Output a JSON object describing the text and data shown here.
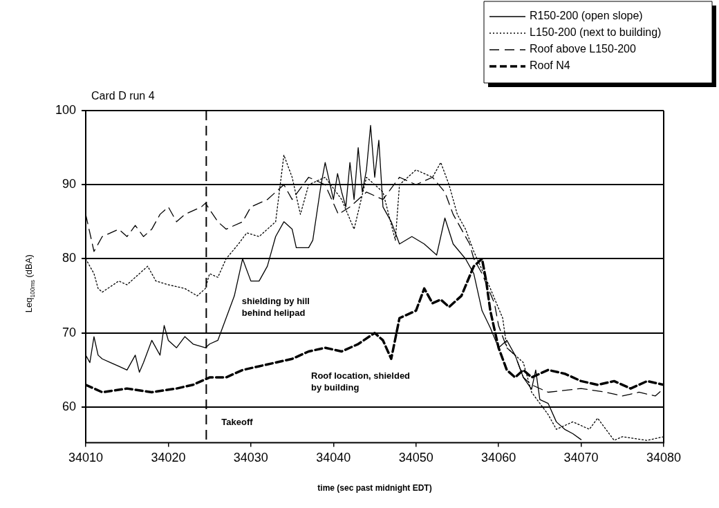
{
  "chart_data": {
    "type": "line",
    "title": "Card D run 4",
    "xlabel": "time (sec past midnight EDT)",
    "ylabel": "Leq$_{100ms}$ (dBA)",
    "xlim": [
      34010,
      34080
    ],
    "xticks": [
      34010,
      34020,
      34030,
      34040,
      34050,
      34060,
      34070,
      34080
    ],
    "ylim": [
      55.2,
      100
    ],
    "yticks": [
      60,
      70,
      80,
      90,
      100
    ],
    "grid": "y",
    "legend": "top right",
    "marker": "none",
    "ref_lines": [
      {
        "axis": "x",
        "value": 34024.6,
        "label": "Takeoff",
        "line_style": "dashed",
        "color": "#000000"
      }
    ],
    "annotations": [
      "shielding by hill\nbehind helipad",
      "Roof location, shielded\nby building"
    ],
    "series": [
      {
        "name": "R150-200 (open slope)",
        "color": "#000000",
        "line_style": "solid",
        "x": [
          34010,
          34010.5,
          34011,
          34011.5,
          34012,
          34013,
          34014,
          34015,
          34016,
          34016.5,
          34017,
          34018,
          34019,
          34019.5,
          34020,
          34021,
          34022,
          34023,
          34024.5,
          34025,
          34026,
          34027,
          34028,
          34029,
          34030,
          34031,
          34032,
          34033,
          34034,
          34035,
          34035.5,
          34037,
          34037.5,
          34038.5,
          34039,
          34040,
          34040.5,
          34041,
          34041.5,
          34042,
          34042.5,
          34043,
          34043.5,
          34044,
          34044.5,
          34045,
          34045.5,
          34046,
          34047,
          34048,
          34049.5,
          34051,
          34052.5,
          34053.5,
          34054.5,
          34056,
          34057,
          34058,
          34059,
          34060,
          34061,
          34062,
          34063,
          34064,
          34064.5,
          34065,
          34066,
          34067,
          34068,
          34069,
          34070
        ],
        "values": [
          67,
          66,
          69.5,
          67,
          66.5,
          66,
          65.5,
          65,
          67,
          64.7,
          66,
          69,
          67,
          71,
          69,
          68,
          69.5,
          68.5,
          68,
          68.5,
          69,
          72,
          75,
          80,
          77,
          77,
          79,
          83,
          85,
          84,
          81.5,
          81.5,
          82.5,
          90,
          93,
          88,
          91.5,
          89,
          87,
          93,
          88,
          95,
          89,
          92,
          98,
          91,
          96,
          87,
          85,
          82,
          83,
          82,
          80.5,
          85.5,
          82,
          80,
          78,
          73,
          70.7,
          68,
          69,
          67,
          64,
          62.4,
          65,
          61,
          60.5,
          58,
          57,
          56.4,
          55.6
        ]
      },
      {
        "name": "L150-200 (next to building)",
        "color": "#000000",
        "line_style": "dotted",
        "x": [
          34010,
          34011,
          34011.5,
          34012,
          34014,
          34015,
          34016,
          34017.5,
          34018.5,
          34020,
          34022,
          34023.5,
          34024.5,
          34025,
          34026,
          34027,
          34028.5,
          34029.5,
          34031,
          34032,
          34033,
          34034,
          34035,
          34036,
          34037,
          34039,
          34041,
          34042.5,
          34044,
          34046,
          34047.5,
          34048,
          34050,
          34052,
          34053,
          34054,
          34055,
          34056,
          34057,
          34059,
          34060.5,
          34061,
          34063,
          34064,
          34066,
          34067,
          34069,
          34071,
          34072,
          34073,
          34074,
          34075,
          34078,
          34080
        ],
        "values": [
          80,
          78,
          76,
          75.5,
          77,
          76.5,
          77.5,
          79,
          77,
          76.5,
          76,
          75,
          76,
          78,
          77.5,
          80,
          82,
          83.5,
          83,
          84,
          85,
          94,
          91,
          86,
          90,
          91,
          88,
          84,
          91,
          89,
          82.5,
          90,
          92,
          91,
          93,
          90,
          86,
          84,
          81,
          76,
          72,
          68,
          66,
          62,
          59,
          57,
          58,
          57,
          58.5,
          57,
          55.5,
          56,
          55.5,
          56
        ]
      },
      {
        "name": "Roof above L150-200",
        "color": "#000000",
        "line_style": "dashed",
        "x": [
          34010,
          34011,
          34012,
          34014,
          34015,
          34016,
          34017,
          34018,
          34019,
          34020,
          34021,
          34022,
          34024,
          34024.5,
          34026,
          34027,
          34029,
          34030,
          34032,
          34033,
          34034,
          34035,
          34037,
          34039,
          34040.6,
          34042,
          34044,
          34046,
          34048,
          34050,
          34052,
          34053.5,
          34054.5,
          34055,
          34056.5,
          34057,
          34058,
          34059.5,
          34060,
          34061,
          34062,
          34063,
          34064,
          34066,
          34070,
          34073,
          34075,
          34077,
          34079,
          34080
        ],
        "values": [
          86,
          81,
          83,
          84,
          83,
          84.5,
          83,
          84,
          86,
          87,
          85,
          86,
          87,
          87.5,
          85,
          84,
          85,
          87,
          88,
          89,
          90,
          88,
          91,
          90,
          86,
          87,
          89,
          88,
          91,
          90,
          91,
          89,
          86,
          85,
          82,
          80,
          78,
          74,
          71,
          68,
          67,
          64,
          63,
          62,
          62.5,
          62,
          61.5,
          62,
          61.5,
          62.5
        ]
      },
      {
        "name": "Roof N4",
        "color": "#000000",
        "line_style": "dashed",
        "x": [
          34010,
          34012,
          34015,
          34018,
          34021,
          34023,
          34025,
          34027,
          34029,
          34031,
          34033,
          34035,
          34037,
          34039,
          34041,
          34043,
          34045,
          34046,
          34047,
          34048,
          34050,
          34051,
          34052,
          34053,
          34054,
          34055.5,
          34057,
          34058,
          34058.5,
          34059,
          34060,
          34061,
          34062,
          34063,
          34064,
          34066,
          34068,
          34070,
          34072,
          34074,
          34076,
          34078,
          34080
        ],
        "values": [
          63,
          62,
          62.5,
          62,
          62.5,
          63,
          64,
          64,
          65,
          65.5,
          66,
          66.5,
          67.5,
          68,
          67.5,
          68.5,
          70,
          69,
          66.5,
          72,
          73,
          76,
          74,
          74.5,
          73.5,
          75,
          79,
          80,
          77,
          73,
          68,
          65,
          64,
          65,
          64,
          65,
          64.5,
          63.5,
          63,
          63.5,
          62.5,
          63.5,
          63
        ]
      }
    ]
  }
}
